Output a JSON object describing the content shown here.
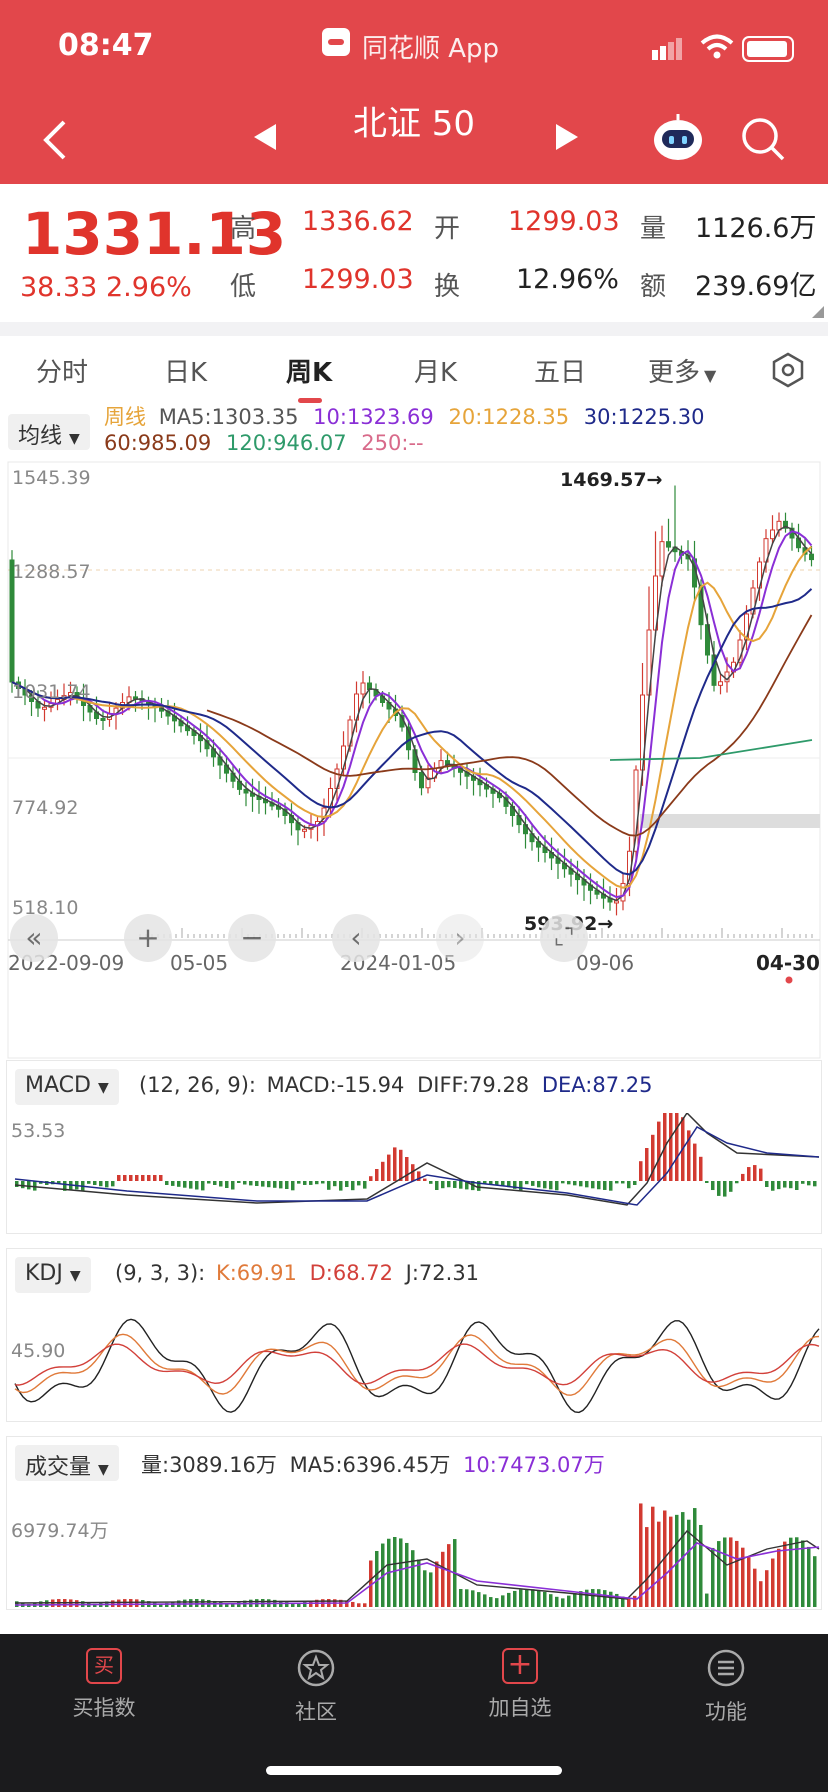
{
  "status": {
    "time": "08:47",
    "app": "同花顺 App"
  },
  "nav": {
    "title": "北证 50"
  },
  "quote": {
    "price": "1331.13",
    "change": "38.33",
    "pct": "2.96%",
    "high_label": "高",
    "high": "1336.62",
    "open_label": "开",
    "open": "1299.03",
    "vol_label": "量",
    "vol": "1126.6万",
    "low_label": "低",
    "low": "1299.03",
    "turn_label": "换",
    "turn": "12.96%",
    "amt_label": "额",
    "amt": "239.69亿"
  },
  "tabs": [
    "分时",
    "日K",
    "周K",
    "月K",
    "五日",
    "更多"
  ],
  "active_tab": 2,
  "ma": {
    "selector": "均线",
    "kind": "周线",
    "ma5": "MA5:1303.35",
    "ma10": "10:1323.69",
    "ma20": "20:1228.35",
    "ma30": "30:1225.30",
    "ma60": "60:985.09",
    "ma120": "120:946.07",
    "ma250": "250:--"
  },
  "price_axis": [
    "1545.39",
    "1288.57",
    "1031.74",
    "774.92",
    "518.10"
  ],
  "annotations": {
    "high": "1469.57→",
    "low": "593.92→"
  },
  "date_axis": [
    "2022-09-09",
    "05-05",
    "2024-01-05",
    "09-06",
    "04-30"
  ],
  "macd": {
    "selector": "MACD",
    "params": "(12, 26, 9):",
    "macd": "MACD:-15.94",
    "diff": "DIFF:79.28",
    "dea": "DEA:87.25",
    "level": "53.53"
  },
  "kdj": {
    "selector": "KDJ",
    "params": "(9, 3, 3):",
    "k": "K:69.91",
    "d": "D:68.72",
    "j": "J:72.31",
    "level": "45.90"
  },
  "volume": {
    "selector": "成交量",
    "vol": "量:3089.16万",
    "ma5": "MA5:6396.45万",
    "ma10": "10:7473.07万",
    "level": "6979.74万"
  },
  "bottom_nav": [
    "买指数",
    "社区",
    "加自选",
    "功能"
  ],
  "colors": {
    "red": "#e2474b",
    "up": "#d23a31",
    "down": "#2f8a3a",
    "ma5": "#e6a43a",
    "ma10": "#8a2fd6",
    "ma20": "#e6a43a",
    "ma30": "#1f2a8a",
    "ma60": "#8a3a1a",
    "ma120": "#2e9a6a",
    "ma250": "#d86a8a"
  }
}
